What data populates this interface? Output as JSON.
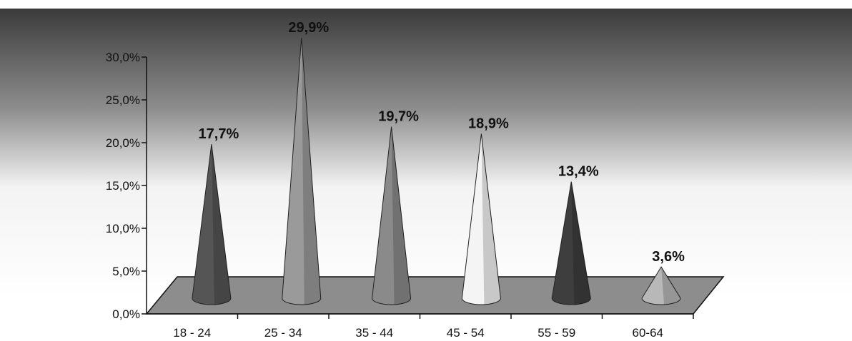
{
  "chart_data": {
    "type": "bar",
    "categories": [
      "18 - 24",
      "25 - 34",
      "35 -  44",
      "45 -  54",
      "55 - 59",
      "60-64"
    ],
    "values": [
      17.7,
      29.9,
      19.7,
      18.9,
      13.4,
      3.6
    ],
    "data_labels": [
      "17,7%",
      "29,9%",
      "19,7%",
      "18,9%",
      "13,4%",
      "3,6%"
    ],
    "y_ticks": [
      {
        "value": 0,
        "label": "0,0%"
      },
      {
        "value": 5,
        "label": "5,0%"
      },
      {
        "value": 10,
        "label": "10,0%"
      },
      {
        "value": 15,
        "label": "15,0%"
      },
      {
        "value": 20,
        "label": "20,0%"
      },
      {
        "value": 25,
        "label": "25,0%"
      },
      {
        "value": 30,
        "label": "30,0%"
      }
    ],
    "ylim": [
      0,
      30
    ],
    "title": "",
    "xlabel": "",
    "ylabel": "",
    "grid": false,
    "style": "3d-cone",
    "colors": [
      "#555555",
      "#9a9a9a",
      "#8a8a8a",
      "#f4f4f4",
      "#3e3e3e",
      "#b8b8b8"
    ],
    "background_gradient": [
      "#3a3a3a",
      "#ffffff"
    ]
  }
}
